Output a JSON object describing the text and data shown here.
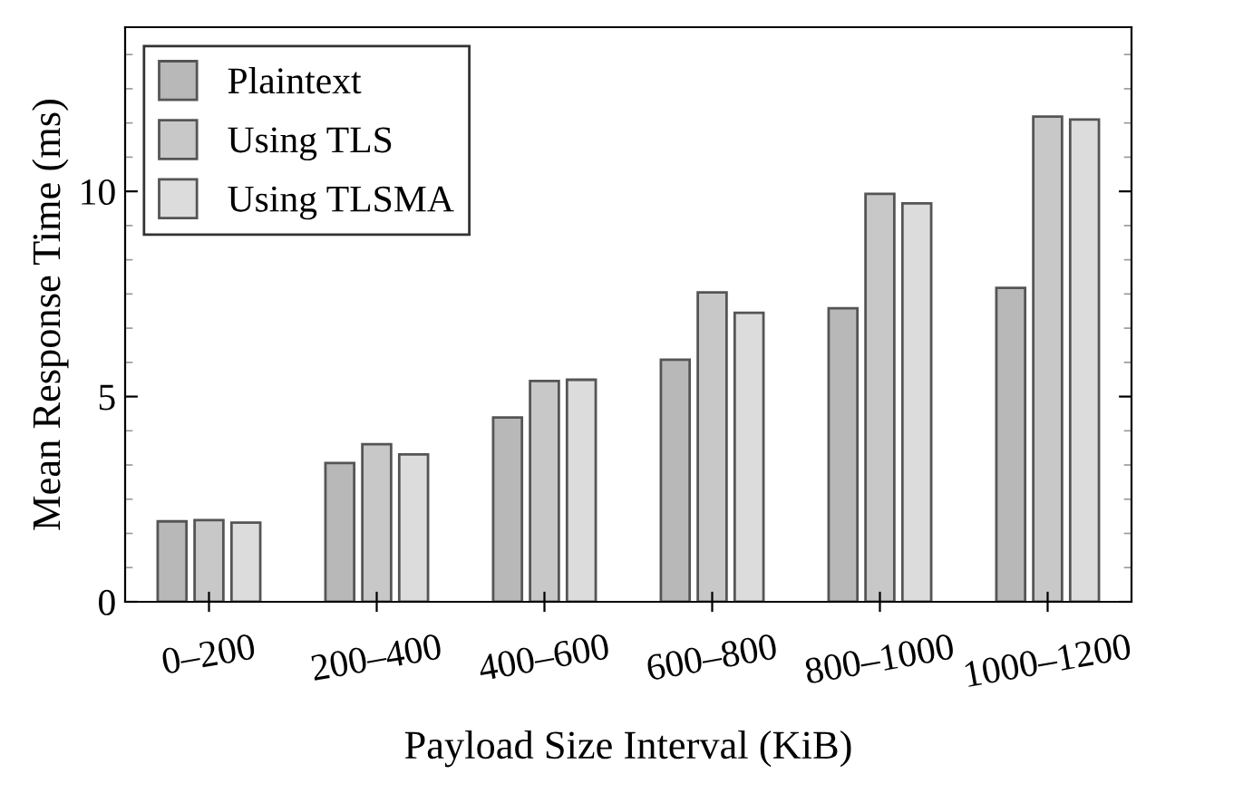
{
  "chart_data": {
    "type": "bar",
    "xlabel": "Payload Size Interval (KiB)",
    "ylabel": "Mean Response Time (ms)",
    "categories": [
      "0–200",
      "200–400",
      "400–600",
      "600–800",
      "800–1000",
      "1000–1200"
    ],
    "series": [
      {
        "name": "Plaintext",
        "color": "#b8b8b8",
        "values": [
          1.96,
          3.38,
          4.49,
          5.9,
          7.15,
          7.65
        ]
      },
      {
        "name": "Using TLS",
        "color": "#c8c8c8",
        "values": [
          1.99,
          3.84,
          5.38,
          7.54,
          9.94,
          11.82
        ]
      },
      {
        "name": "Using TLSMA",
        "color": "#dcdcdc",
        "values": [
          1.93,
          3.59,
          5.41,
          7.04,
          9.71,
          11.75
        ]
      }
    ],
    "ylim": [
      0,
      14
    ],
    "yticks": [
      0,
      5,
      10
    ],
    "grid": false,
    "legend": "top left"
  }
}
